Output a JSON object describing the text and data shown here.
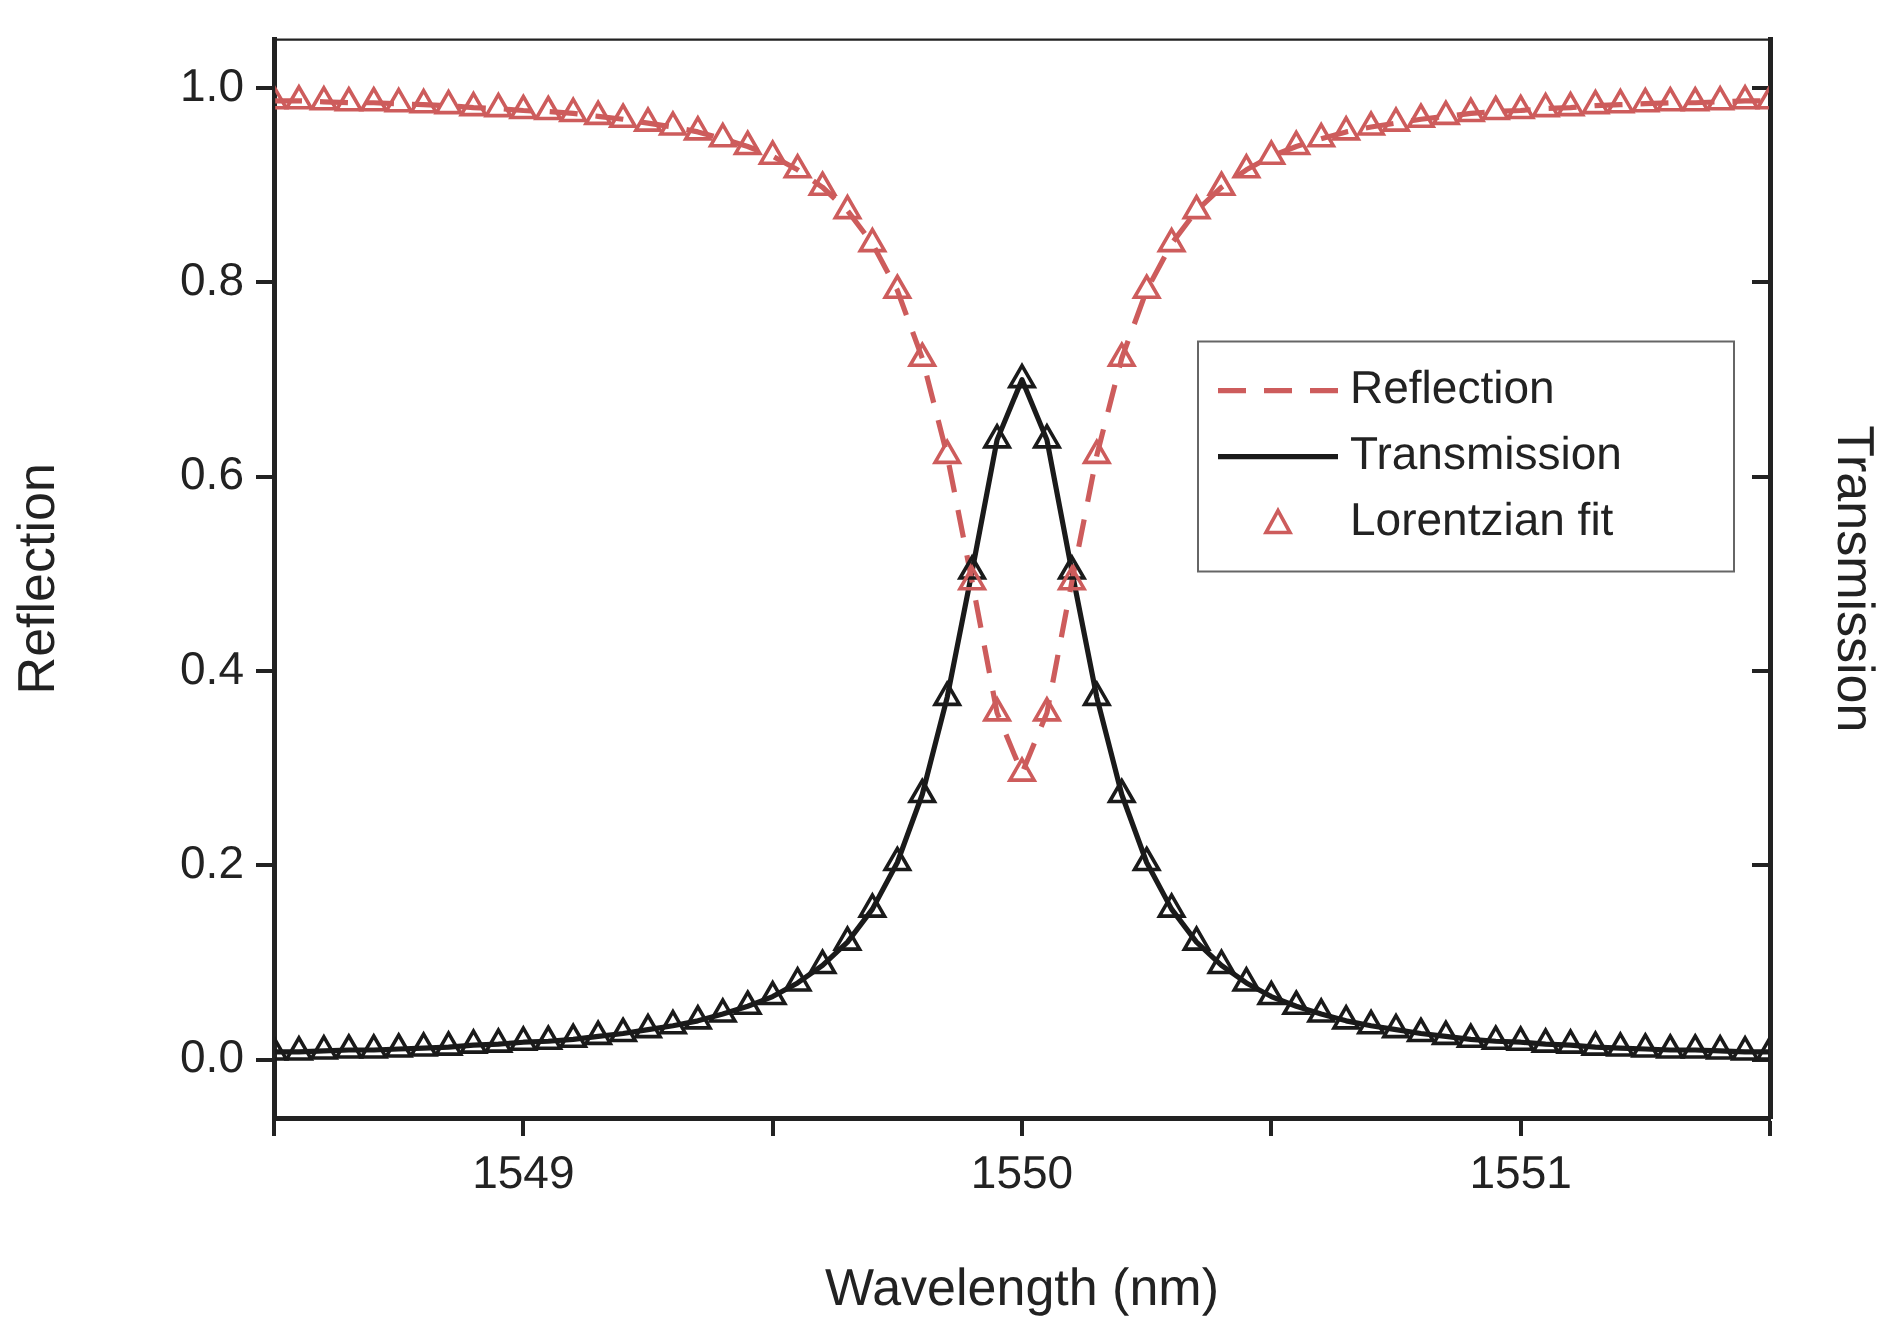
{
  "chart_data": {
    "type": "line",
    "xlabel": "Wavelength (nm)",
    "ylabel": "Reflection",
    "y2label": "Transmission",
    "x": [
      1548.5,
      1548.55,
      1548.6,
      1548.65,
      1548.7,
      1548.75,
      1548.8,
      1548.85,
      1548.9,
      1548.95,
      1549,
      1549.05,
      1549.1,
      1549.15,
      1549.2,
      1549.25,
      1549.3,
      1549.35,
      1549.4,
      1549.45,
      1549.5,
      1549.55,
      1549.6,
      1549.65,
      1549.7,
      1549.75,
      1549.8,
      1549.85,
      1549.9,
      1549.95,
      1550,
      1550.05,
      1550.1,
      1550.15,
      1550.2,
      1550.25,
      1550.3,
      1550.35,
      1550.4,
      1550.45,
      1550.5,
      1550.55,
      1550.6,
      1550.65,
      1550.7,
      1550.75,
      1550.8,
      1550.85,
      1550.9,
      1550.95,
      1551,
      1551.05,
      1551.1,
      1551.15,
      1551.2,
      1551.25,
      1551.3,
      1551.35,
      1551.4,
      1551.45,
      1551.5
    ],
    "series": [
      {
        "name": "Reflection",
        "type": "line",
        "line_style": "dashed",
        "marker": "none",
        "color": "#cd5c5c",
        "values": [
          0.987,
          0.987,
          0.986,
          0.985,
          0.985,
          0.984,
          0.983,
          0.982,
          0.98,
          0.979,
          0.977,
          0.976,
          0.974,
          0.971,
          0.968,
          0.964,
          0.96,
          0.955,
          0.948,
          0.94,
          0.93,
          0.916,
          0.898,
          0.874,
          0.84,
          0.792,
          0.722,
          0.622,
          0.492,
          0.357,
          0.295,
          0.357,
          0.492,
          0.622,
          0.722,
          0.792,
          0.84,
          0.874,
          0.898,
          0.916,
          0.93,
          0.94,
          0.948,
          0.955,
          0.96,
          0.964,
          0.968,
          0.971,
          0.974,
          0.976,
          0.977,
          0.979,
          0.98,
          0.982,
          0.983,
          0.984,
          0.985,
          0.985,
          0.986,
          0.987,
          0.987
        ]
      },
      {
        "name": "Transmission",
        "type": "line",
        "line_style": "solid",
        "marker": "none",
        "color": "#1a1a1a",
        "values": [
          0.008,
          0.008,
          0.009,
          0.01,
          0.01,
          0.011,
          0.012,
          0.013,
          0.015,
          0.016,
          0.018,
          0.019,
          0.021,
          0.024,
          0.027,
          0.031,
          0.035,
          0.04,
          0.047,
          0.055,
          0.065,
          0.079,
          0.097,
          0.121,
          0.155,
          0.203,
          0.273,
          0.373,
          0.503,
          0.638,
          0.7,
          0.638,
          0.503,
          0.373,
          0.273,
          0.203,
          0.155,
          0.121,
          0.097,
          0.079,
          0.065,
          0.055,
          0.047,
          0.04,
          0.035,
          0.031,
          0.027,
          0.024,
          0.021,
          0.019,
          0.018,
          0.016,
          0.015,
          0.013,
          0.012,
          0.011,
          0.01,
          0.01,
          0.009,
          0.008,
          0.008
        ]
      },
      {
        "name": "Lorentzian fit",
        "type": "scatter",
        "marker": "triangle",
        "color": "#cd5c5c",
        "values": [
          0.987,
          0.987,
          0.986,
          0.985,
          0.985,
          0.984,
          0.983,
          0.982,
          0.98,
          0.979,
          0.977,
          0.976,
          0.974,
          0.971,
          0.968,
          0.964,
          0.96,
          0.955,
          0.948,
          0.94,
          0.93,
          0.916,
          0.898,
          0.874,
          0.84,
          0.792,
          0.722,
          0.622,
          0.492,
          0.357,
          0.295,
          0.357,
          0.492,
          0.622,
          0.722,
          0.792,
          0.84,
          0.874,
          0.898,
          0.916,
          0.93,
          0.94,
          0.948,
          0.955,
          0.96,
          0.964,
          0.968,
          0.971,
          0.974,
          0.976,
          0.977,
          0.979,
          0.98,
          0.982,
          0.983,
          0.984,
          0.985,
          0.985,
          0.986,
          0.987,
          0.987
        ]
      },
      {
        "type": "scatter",
        "marker": "triangle",
        "color": "#1a1a1a",
        "values": [
          0.008,
          0.008,
          0.009,
          0.01,
          0.01,
          0.011,
          0.012,
          0.013,
          0.015,
          0.016,
          0.018,
          0.019,
          0.021,
          0.024,
          0.027,
          0.031,
          0.035,
          0.04,
          0.047,
          0.055,
          0.065,
          0.079,
          0.097,
          0.121,
          0.155,
          0.203,
          0.273,
          0.373,
          0.503,
          0.638,
          0.7,
          0.638,
          0.503,
          0.373,
          0.273,
          0.203,
          0.155,
          0.121,
          0.097,
          0.079,
          0.065,
          0.055,
          0.047,
          0.04,
          0.035,
          0.031,
          0.027,
          0.024,
          0.021,
          0.019,
          0.018,
          0.016,
          0.015,
          0.013,
          0.012,
          0.011,
          0.01,
          0.01,
          0.009,
          0.008,
          0.008
        ]
      }
    ],
    "xlim": [
      1548.5,
      1551.5
    ],
    "xticks": [
      {
        "value": 1548.5,
        "label": null
      },
      1549,
      {
        "value": 1549.5,
        "label": null
      },
      1550,
      {
        "value": 1550.5,
        "label": null
      },
      1551,
      {
        "value": 1551.5,
        "label": null
      }
    ],
    "ylim": [
      -0.06,
      1.05
    ],
    "yticks": [
      {
        "value": 0,
        "label": "0.0"
      },
      {
        "value": 0.2,
        "label": "0.2"
      },
      {
        "value": 0.4,
        "label": "0.4"
      },
      {
        "value": 0.6,
        "label": "0.6"
      },
      {
        "value": 0.8,
        "label": "0.8"
      },
      {
        "value": 1,
        "label": "1.0"
      }
    ],
    "grid": false,
    "legend": "right"
  }
}
